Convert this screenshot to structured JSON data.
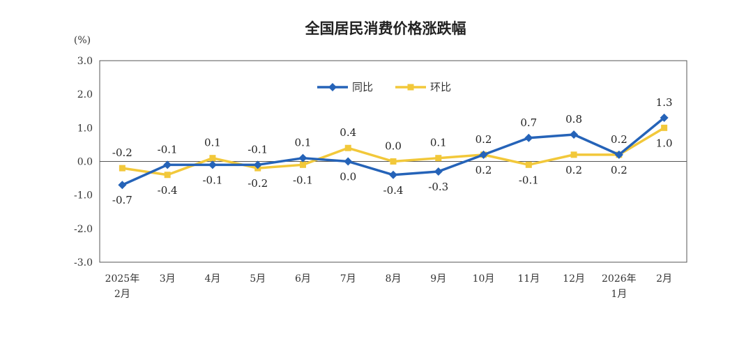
{
  "chart_data": {
    "type": "line",
    "title": "全国居民消费价格涨跌幅",
    "ylabel": "(%)",
    "ylim": [
      -3.0,
      3.0
    ],
    "yticks": [
      "3.0",
      "2.0",
      "1.0",
      "0.0",
      "-1.0",
      "-2.0",
      "-3.0"
    ],
    "ytick_values": [
      3,
      2,
      1,
      0,
      -1,
      -2,
      -3
    ],
    "categories": [
      [
        "2025年",
        "2月"
      ],
      [
        "3月"
      ],
      [
        "4月"
      ],
      [
        "5月"
      ],
      [
        "6月"
      ],
      [
        "7月"
      ],
      [
        "8月"
      ],
      [
        "9月"
      ],
      [
        "10月"
      ],
      [
        "11月"
      ],
      [
        "12月"
      ],
      [
        "2026年",
        "1月"
      ],
      [
        "2月"
      ]
    ],
    "legend_position": "top-center",
    "series": [
      {
        "name": "同比",
        "color": "#2563b8",
        "marker": "diamond",
        "values": [
          -0.7,
          -0.1,
          -0.1,
          -0.1,
          0.1,
          0.0,
          -0.4,
          -0.3,
          0.2,
          0.7,
          0.8,
          0.2,
          1.3
        ],
        "labels": [
          "-0.7",
          "-0.1",
          "-0.1",
          "-0.1",
          "0.1",
          "0.0",
          "-0.4",
          "-0.3",
          "0.2",
          "0.7",
          "0.8",
          "0.2",
          "1.3"
        ]
      },
      {
        "name": "环比",
        "color": "#f2c83a",
        "marker": "square",
        "values": [
          -0.2,
          -0.4,
          0.1,
          -0.2,
          -0.1,
          0.4,
          0.0,
          0.1,
          0.2,
          -0.1,
          0.2,
          0.2,
          1.0
        ],
        "labels": [
          "-0.2",
          "-0.4",
          "0.1",
          "-0.2",
          "-0.1",
          "0.4",
          "0.0",
          "0.1",
          "0.2",
          "-0.1",
          "0.2",
          "0.2",
          "1.0"
        ]
      }
    ]
  }
}
